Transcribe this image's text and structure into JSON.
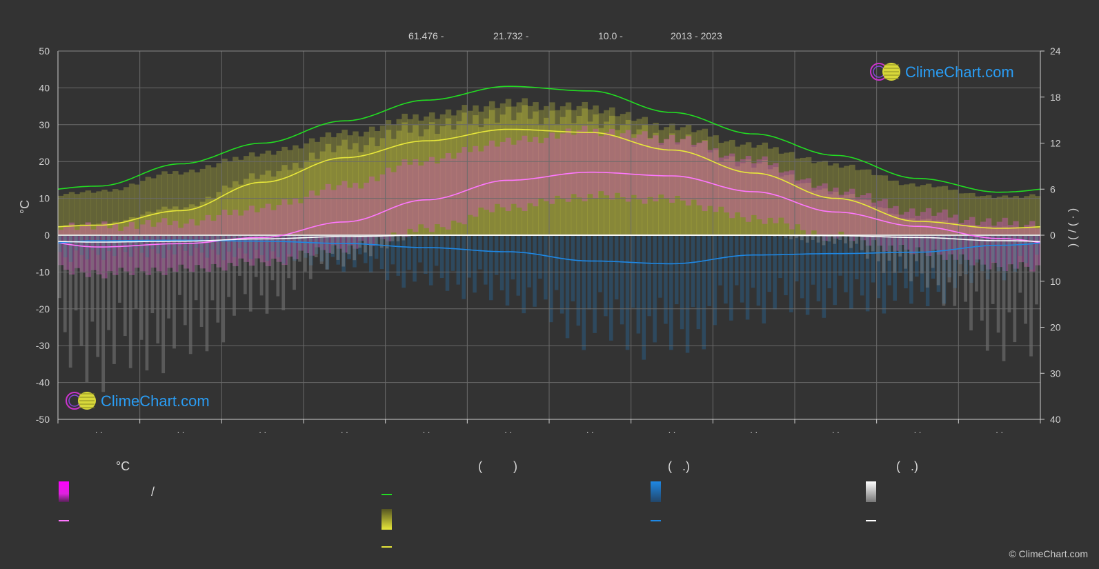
{
  "header": {
    "lat": "61.476 -",
    "lon": "21.732 -",
    "elev": "10.0 -",
    "years": "2013 - 2023"
  },
  "brand": {
    "name": "ClimeChart.com",
    "copyright": "© ClimeChart.com"
  },
  "legend": {
    "temp_title": "°C",
    "slash": "/",
    "sun_paren": "(         )",
    "rain_paren": "(   .)",
    "snow_paren": "(   .)"
  },
  "colors": {
    "daylight": "#22dd22",
    "sunshine": "#e8e83a",
    "temp_mean": "#ff77ff",
    "temp_band": "#dd44dd",
    "rain": "#1e88e5",
    "snow": "#ffffff"
  },
  "chart_data": {
    "type": "line",
    "months_x": [
      0.5,
      1.5,
      2.5,
      3.5,
      4.5,
      5.5,
      6.5,
      7.5,
      8.5,
      9.5,
      10.5,
      11.5
    ],
    "x_tick_labels": [
      ". .",
      ". .",
      ". .",
      ". .",
      ". .",
      ". .",
      ". .",
      ". .",
      ". .",
      ". .",
      ". .",
      ". ."
    ],
    "y_left": {
      "label": "°C",
      "ticks": [
        50,
        40,
        30,
        20,
        10,
        0,
        -10,
        -20,
        -30,
        -40,
        -50
      ],
      "range": [
        -50,
        50
      ]
    },
    "y_right_top": {
      "ticks": [
        24,
        18,
        12,
        6,
        0
      ],
      "range": [
        0,
        24
      ]
    },
    "y_right_bottom": {
      "ticks": [
        10,
        20,
        30,
        40
      ],
      "range": [
        0,
        40
      ]
    },
    "y_right_label": ")   (   /   (   ·   )",
    "series": [
      {
        "key": "daylight",
        "values": [
          6.4,
          9.3,
          12.0,
          14.9,
          17.6,
          19.4,
          18.8,
          16.0,
          13.2,
          10.4,
          7.4,
          5.6
        ]
      },
      {
        "key": "sunshine",
        "values": [
          1.3,
          3.2,
          6.9,
          10.1,
          12.3,
          13.8,
          13.4,
          11.1,
          8.1,
          4.8,
          1.8,
          0.9
        ]
      },
      {
        "key": "temp_mean",
        "values": [
          -3.2,
          -2.3,
          -0.6,
          3.6,
          9.6,
          14.9,
          17.1,
          16.1,
          11.8,
          6.3,
          2.4,
          -0.9
        ]
      },
      {
        "key": "rain",
        "values": [
          1.2,
          1.1,
          1.3,
          1.8,
          2.7,
          3.6,
          5.6,
          6.2,
          4.3,
          4.0,
          3.7,
          2.2
        ]
      },
      {
        "key": "snow",
        "values": [
          1.5,
          1.3,
          0.8,
          0.3,
          0.0,
          0.0,
          0.0,
          0.0,
          0.0,
          0.1,
          0.5,
          1.2
        ]
      }
    ],
    "temp_band": {
      "max": [
        1,
        2,
        6,
        12,
        19,
        24,
        27,
        25,
        19,
        11,
        5,
        2
      ],
      "min": [
        -9,
        -8,
        -6,
        -2,
        3,
        9,
        12,
        11,
        6,
        1,
        -3,
        -7
      ]
    },
    "grid": true
  }
}
